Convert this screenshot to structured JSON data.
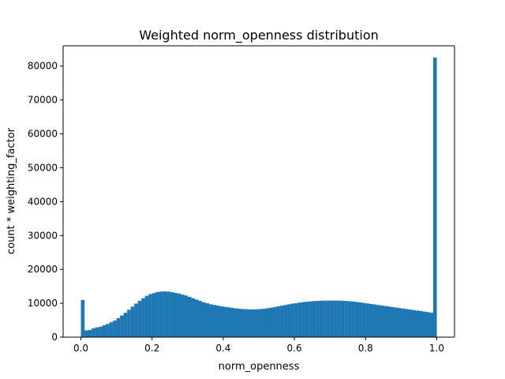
{
  "chart_data": {
    "type": "bar",
    "title": "Weighted norm_openness distribution",
    "xlabel": "norm_openness",
    "ylabel": "count * weighting_factor",
    "xlim": [
      -0.05,
      1.05
    ],
    "ylim": [
      0,
      86000
    ],
    "xticks": [
      0.0,
      0.2,
      0.4,
      0.6,
      0.8,
      1.0
    ],
    "xtick_labels": [
      "0.0",
      "0.2",
      "0.4",
      "0.6",
      "0.8",
      "1.0"
    ],
    "yticks": [
      0,
      10000,
      20000,
      30000,
      40000,
      50000,
      60000,
      70000,
      80000
    ],
    "ytick_labels": [
      "0",
      "10000",
      "20000",
      "30000",
      "40000",
      "50000",
      "60000",
      "70000",
      "80000"
    ],
    "bin_range": [
      0.0,
      1.0
    ],
    "bins": 100,
    "color": "#1f77b4",
    "grid": false,
    "legend": "none",
    "values": [
      11000,
      2000,
      2100,
      2600,
      2900,
      3100,
      3500,
      3900,
      4400,
      4900,
      5600,
      6400,
      7200,
      8100,
      9000,
      9900,
      10700,
      11500,
      12200,
      12700,
      13000,
      13300,
      13450,
      13500,
      13450,
      13300,
      13100,
      12900,
      12600,
      12300,
      11900,
      11500,
      11100,
      10700,
      10300,
      10000,
      9700,
      9500,
      9300,
      9100,
      8950,
      8800,
      8650,
      8500,
      8400,
      8300,
      8250,
      8200,
      8200,
      8250,
      8300,
      8400,
      8550,
      8700,
      8900,
      9100,
      9300,
      9500,
      9700,
      9900,
      10050,
      10200,
      10350,
      10450,
      10550,
      10650,
      10700,
      10750,
      10800,
      10800,
      10800,
      10800,
      10800,
      10750,
      10700,
      10600,
      10500,
      10400,
      10250,
      10100,
      9950,
      9800,
      9650,
      9500,
      9350,
      9200,
      9050,
      8900,
      8750,
      8600,
      8450,
      8300,
      8150,
      8000,
      7850,
      7700,
      7550,
      7400,
      7200,
      82500
    ]
  }
}
